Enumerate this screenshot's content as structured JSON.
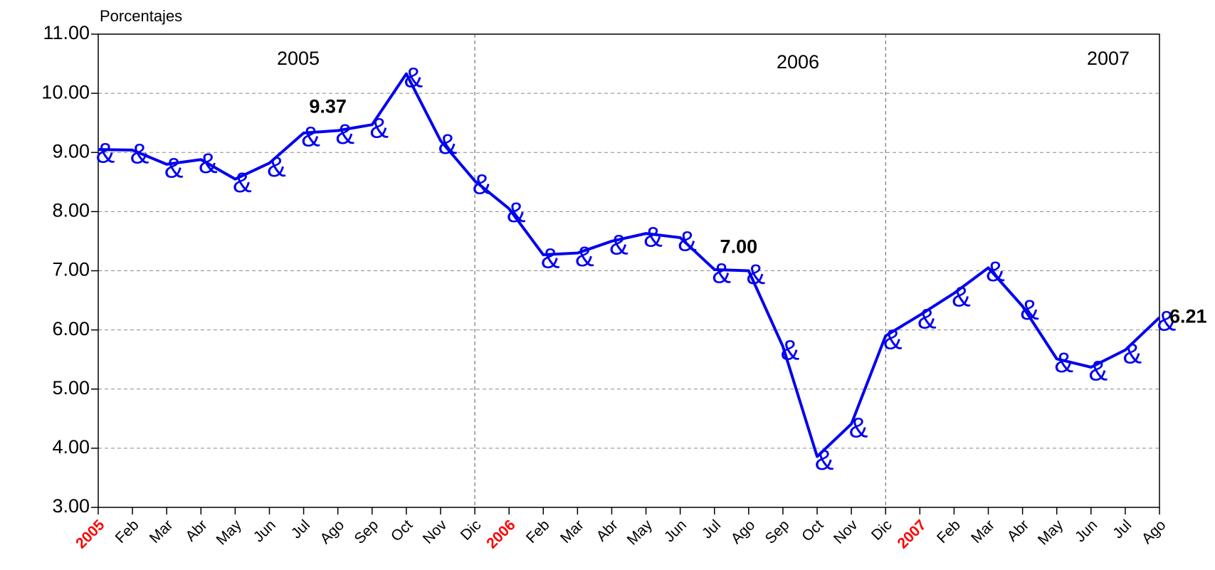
{
  "chart_data": {
    "type": "line",
    "y_axis_label": "Porcentajes",
    "categories": [
      "2005",
      "Feb",
      "Mar",
      "Abr",
      "May",
      "Jun",
      "Jul",
      "Ago",
      "Sep",
      "Oct",
      "Nov",
      "Dic",
      "2006",
      "Feb",
      "Mar",
      "Abr",
      "May",
      "Jun",
      "Jul",
      "Ago",
      "Sep",
      "Oct",
      "Nov",
      "Dic",
      "2007",
      "Feb",
      "Mar",
      "Abr",
      "May",
      "Jun",
      "Jul",
      "Ago"
    ],
    "series": [
      {
        "name": "Porcentajes",
        "color": "#0000ee",
        "values": [
          9.05,
          9.04,
          8.8,
          8.88,
          8.55,
          8.82,
          9.33,
          9.37,
          9.47,
          10.33,
          9.2,
          8.52,
          8.05,
          7.27,
          7.3,
          7.5,
          7.63,
          7.56,
          7.02,
          7.0,
          5.72,
          3.86,
          4.41,
          5.9,
          6.25,
          6.62,
          7.05,
          6.4,
          5.51,
          5.37,
          5.66,
          6.21
        ],
        "value_labels": [
          null,
          null,
          null,
          null,
          null,
          null,
          null,
          "9.37",
          null,
          null,
          null,
          null,
          null,
          null,
          null,
          null,
          null,
          null,
          null,
          "7.00",
          null,
          null,
          null,
          null,
          null,
          null,
          null,
          null,
          null,
          null,
          null,
          "6.21"
        ]
      }
    ],
    "annotations": [
      "2005",
      "2006",
      "2007"
    ],
    "ylim": [
      3,
      11
    ],
    "yticks": [
      {
        "value": 3,
        "label": "3.00"
      },
      {
        "value": 4,
        "label": "4.00"
      },
      {
        "value": 5,
        "label": "5.00"
      },
      {
        "value": 6,
        "label": "6.00"
      },
      {
        "value": 7,
        "label": "7.00"
      },
      {
        "value": 8,
        "label": "8.00"
      },
      {
        "value": 9,
        "label": "9.00"
      },
      {
        "value": 10,
        "label": "10.00"
      },
      {
        "value": 11,
        "label": "11.00"
      }
    ],
    "grid": true,
    "year_label_color": "#ff0000"
  }
}
